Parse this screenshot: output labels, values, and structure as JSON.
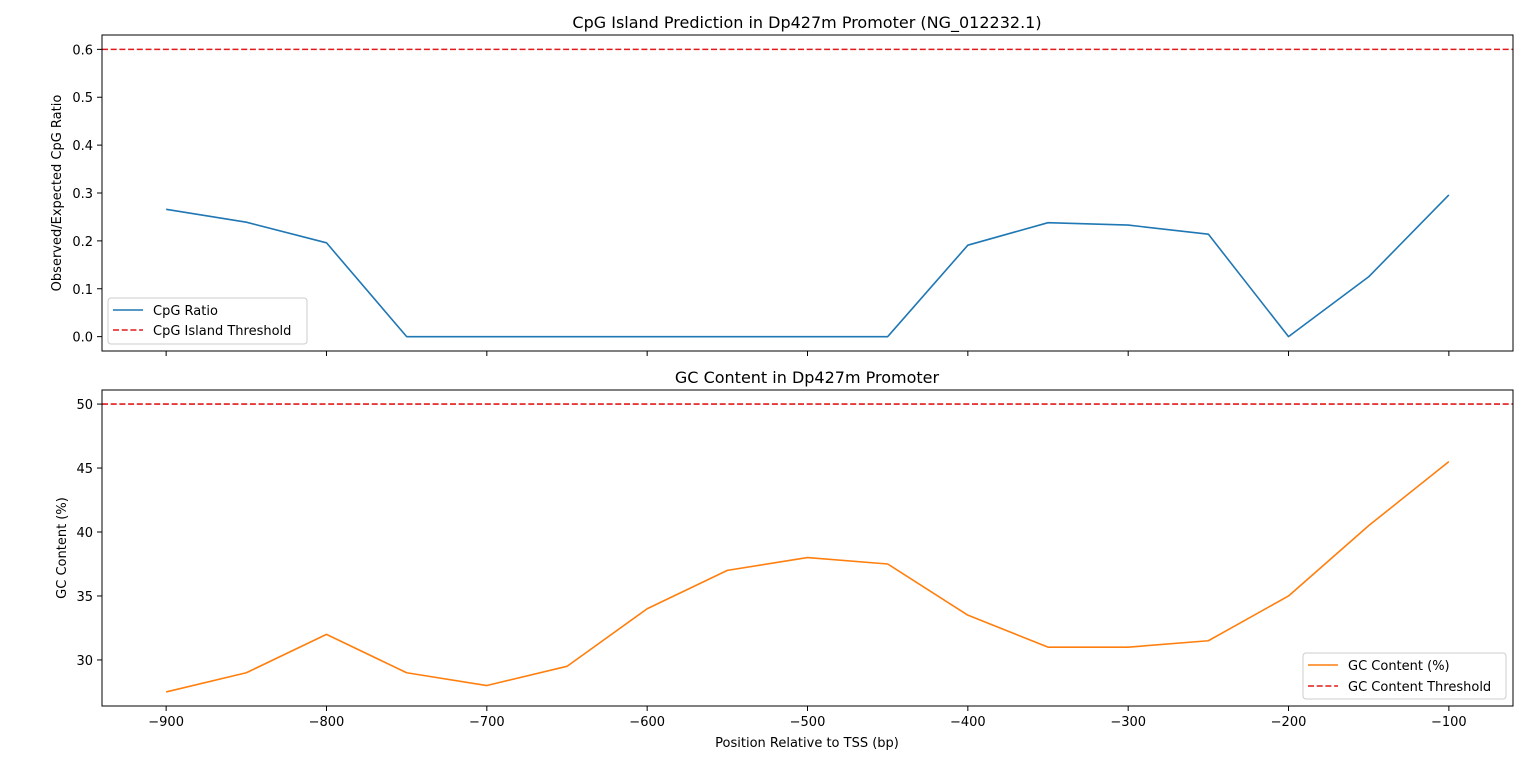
{
  "chart_data": [
    {
      "type": "line",
      "title": "CpG Island Prediction in Dp427m Promoter (NG_012232.1)",
      "xlabel": "",
      "ylabel": "Observed/Expected CpG Ratio",
      "xlim": [
        -940,
        -60
      ],
      "ylim": [
        -0.03,
        0.63
      ],
      "xticks": [
        -900,
        -800,
        -700,
        -600,
        -500,
        -400,
        -300,
        -200,
        -100
      ],
      "xtick_labels_visible": false,
      "yticks": [
        0.0,
        0.1,
        0.2,
        0.3,
        0.4,
        0.5,
        0.6
      ],
      "ytick_labels": [
        "0.0",
        "0.1",
        "0.2",
        "0.3",
        "0.4",
        "0.5",
        "0.6"
      ],
      "grid": false,
      "legend_position": "lower-left",
      "x": [
        -900,
        -850,
        -800,
        -750,
        -700,
        -650,
        -600,
        -550,
        -500,
        -450,
        -400,
        -350,
        -300,
        -250,
        -200,
        -150,
        -100
      ],
      "series": [
        {
          "name": "CpG Ratio",
          "color": "#1f77b4",
          "style": "solid",
          "values": [
            0.266,
            0.239,
            0.196,
            0.0,
            0.0,
            0.0,
            0.0,
            0.0,
            0.0,
            0.0,
            0.191,
            0.238,
            0.233,
            0.214,
            0.0,
            0.125,
            0.296
          ]
        }
      ],
      "threshold": {
        "name": "CpG Island Threshold",
        "value": 0.6,
        "color": "#e31a1c",
        "style": "dashed"
      }
    },
    {
      "type": "line",
      "title": "GC Content in Dp427m Promoter",
      "xlabel": "Position Relative to TSS (bp)",
      "ylabel": "GC Content (%)",
      "xlim": [
        -940,
        -60
      ],
      "ylim": [
        26.4,
        51.1
      ],
      "xticks": [
        -900,
        -800,
        -700,
        -600,
        -500,
        -400,
        -300,
        -200,
        -100
      ],
      "xtick_labels": [
        "−900",
        "−800",
        "−700",
        "−600",
        "−500",
        "−400",
        "−300",
        "−200",
        "−100"
      ],
      "xtick_labels_visible": true,
      "yticks": [
        30,
        35,
        40,
        45,
        50
      ],
      "ytick_labels": [
        "30",
        "35",
        "40",
        "45",
        "50"
      ],
      "grid": false,
      "legend_position": "lower-right",
      "x": [
        -900,
        -850,
        -800,
        -750,
        -700,
        -650,
        -600,
        -550,
        -500,
        -450,
        -400,
        -350,
        -300,
        -250,
        -200,
        -150,
        -100
      ],
      "series": [
        {
          "name": "GC Content (%)",
          "color": "#ff7f0e",
          "style": "solid",
          "values": [
            27.5,
            29.0,
            32.0,
            29.0,
            28.0,
            29.5,
            34.0,
            37.0,
            38.0,
            37.5,
            33.5,
            31.0,
            31.0,
            31.5,
            35.0,
            40.5,
            45.5
          ]
        }
      ],
      "threshold": {
        "name": "GC Content Threshold",
        "value": 50,
        "color": "#e31a1c",
        "style": "dashed"
      }
    }
  ]
}
